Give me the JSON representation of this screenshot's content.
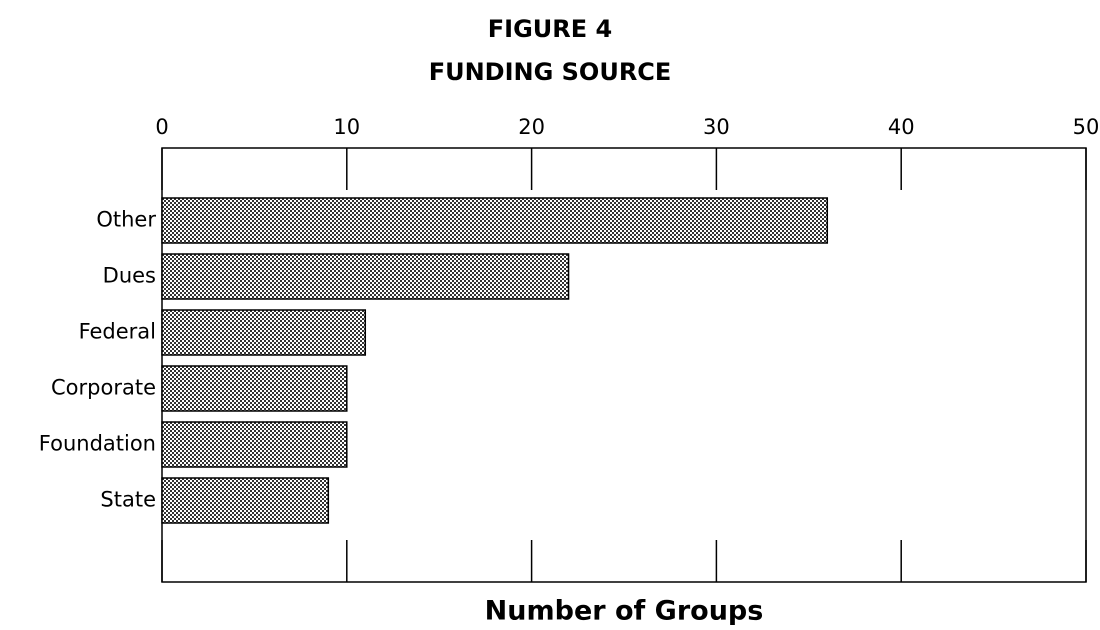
{
  "chart_data": {
    "type": "hbar",
    "title": "FIGURE 4",
    "subtitle": "FUNDING SOURCE",
    "x_label": "Number of Groups",
    "categories": [
      "Other",
      "Dues",
      "Federal",
      "Corporate",
      "Foundation",
      "State"
    ],
    "values": [
      36,
      22,
      11,
      10,
      10,
      9
    ],
    "color": "#555555",
    "xlim": [
      0,
      50
    ],
    "xticks": [
      0,
      10,
      20,
      30,
      40,
      50
    ],
    "grid": false
  }
}
